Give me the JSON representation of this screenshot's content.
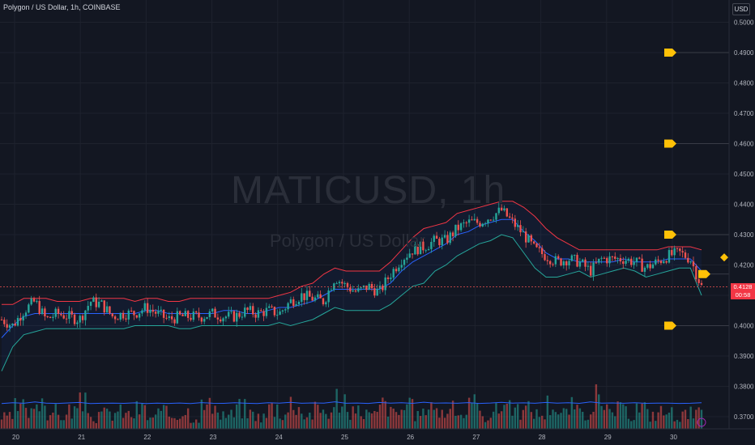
{
  "header": {
    "title": "Polygon / US Dollar, 1h, COINBASE"
  },
  "axis": {
    "currency": "USD"
  },
  "watermark": {
    "symbol": "MATICUSD, 1h",
    "name": "Polygon / US Dollar"
  },
  "last_price": {
    "value": "0.4128",
    "countdown": "00:58"
  },
  "colors": {
    "background": "#131722",
    "up": "#26a69a",
    "down": "#ef5350",
    "upper_band": "#f23645",
    "lower_band": "#26a69a",
    "basis": "#2962ff",
    "alert": "#ffc107"
  },
  "chart_data": {
    "type": "candlestick",
    "ylim": [
      0.366,
      0.502
    ],
    "y_ticks": [
      "0.5000",
      "0.4900",
      "0.4800",
      "0.4700",
      "0.4600",
      "0.4500",
      "0.4400",
      "0.4300",
      "0.4200",
      "0.4100",
      "0.4000",
      "0.3900",
      "0.3800",
      "0.3700"
    ],
    "x_ticks": [
      "20",
      "21",
      "22",
      "23",
      "24",
      "25",
      "26",
      "27",
      "28",
      "29",
      "30"
    ],
    "alert_levels": [
      0.49,
      0.46,
      0.43,
      0.417,
      0.4
    ],
    "price_series": [
      0.402,
      0.4,
      0.405,
      0.408,
      0.402,
      0.404,
      0.403,
      0.402,
      0.408,
      0.407,
      0.403,
      0.404,
      0.404,
      0.406,
      0.404,
      0.402,
      0.403,
      0.403,
      0.403,
      0.404,
      0.403,
      0.403,
      0.405,
      0.404,
      0.405,
      0.404,
      0.408,
      0.41,
      0.409,
      0.408,
      0.416,
      0.413,
      0.411,
      0.413,
      0.411,
      0.417,
      0.422,
      0.425,
      0.426,
      0.428,
      0.428,
      0.432,
      0.434,
      0.434,
      0.436,
      0.438,
      0.434,
      0.43,
      0.425,
      0.423,
      0.421,
      0.422,
      0.421,
      0.418,
      0.422,
      0.422,
      0.422,
      0.421,
      0.419,
      0.421,
      0.423,
      0.424,
      0.422,
      0.4128
    ],
    "bb_upper": [
      0.407,
      0.407,
      0.409,
      0.409,
      0.409,
      0.408,
      0.408,
      0.408,
      0.409,
      0.409,
      0.409,
      0.409,
      0.408,
      0.409,
      0.409,
      0.408,
      0.408,
      0.409,
      0.409,
      0.409,
      0.409,
      0.409,
      0.409,
      0.409,
      0.409,
      0.41,
      0.411,
      0.413,
      0.414,
      0.417,
      0.419,
      0.418,
      0.418,
      0.418,
      0.418,
      0.421,
      0.425,
      0.429,
      0.432,
      0.433,
      0.434,
      0.437,
      0.438,
      0.439,
      0.44,
      0.441,
      0.441,
      0.439,
      0.436,
      0.432,
      0.429,
      0.427,
      0.425,
      0.425,
      0.425,
      0.425,
      0.425,
      0.425,
      0.425,
      0.425,
      0.426,
      0.426,
      0.426,
      0.425
    ],
    "bb_lower": [
      0.385,
      0.393,
      0.397,
      0.398,
      0.399,
      0.399,
      0.399,
      0.399,
      0.399,
      0.399,
      0.399,
      0.399,
      0.4,
      0.4,
      0.4,
      0.4,
      0.399,
      0.399,
      0.4,
      0.4,
      0.4,
      0.4,
      0.4,
      0.4,
      0.4,
      0.401,
      0.4,
      0.401,
      0.402,
      0.404,
      0.406,
      0.405,
      0.405,
      0.405,
      0.405,
      0.407,
      0.41,
      0.413,
      0.414,
      0.418,
      0.42,
      0.423,
      0.425,
      0.427,
      0.428,
      0.43,
      0.429,
      0.424,
      0.419,
      0.416,
      0.416,
      0.417,
      0.418,
      0.416,
      0.417,
      0.418,
      0.419,
      0.418,
      0.416,
      0.417,
      0.418,
      0.419,
      0.419,
      0.41
    ],
    "bb_basis": [
      0.396,
      0.4,
      0.403,
      0.404,
      0.404,
      0.404,
      0.404,
      0.404,
      0.404,
      0.404,
      0.404,
      0.404,
      0.404,
      0.405,
      0.405,
      0.404,
      0.404,
      0.404,
      0.404,
      0.404,
      0.405,
      0.405,
      0.404,
      0.404,
      0.405,
      0.406,
      0.406,
      0.407,
      0.408,
      0.41,
      0.412,
      0.412,
      0.412,
      0.412,
      0.412,
      0.414,
      0.418,
      0.421,
      0.423,
      0.425,
      0.427,
      0.43,
      0.431,
      0.433,
      0.434,
      0.435,
      0.435,
      0.431,
      0.428,
      0.424,
      0.422,
      0.422,
      0.421,
      0.421,
      0.421,
      0.421,
      0.422,
      0.421,
      0.421,
      0.421,
      0.422,
      0.422,
      0.422,
      0.418
    ],
    "volume": [
      0.3,
      0.55,
      0.4,
      0.8,
      0.45,
      0.35,
      0.5,
      0.65,
      0.3,
      0.4,
      0.45,
      0.38,
      0.52,
      0.3,
      0.42,
      0.36,
      0.48,
      0.33,
      0.6,
      0.4,
      0.37,
      0.55,
      0.41,
      0.32,
      0.58,
      0.44,
      0.7,
      0.39,
      0.5,
      0.46,
      0.85,
      0.4,
      0.47,
      0.36,
      0.64,
      0.42,
      0.55,
      0.38,
      0.72,
      0.45,
      0.5,
      0.41,
      0.6,
      0.35,
      0.48,
      0.7,
      0.44,
      0.52,
      0.39,
      0.66,
      0.42,
      0.58,
      0.37,
      0.8,
      0.45,
      0.5,
      0.4,
      0.56,
      0.38,
      0.45,
      0.42,
      0.36,
      0.4,
      0.55
    ]
  }
}
